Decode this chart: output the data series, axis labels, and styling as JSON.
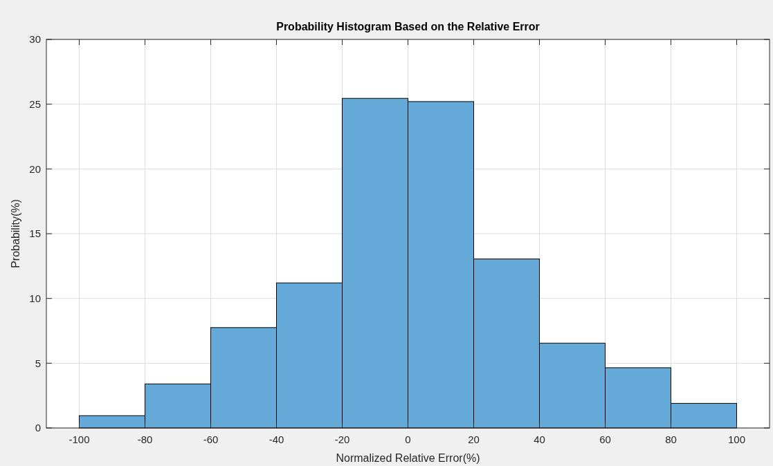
{
  "chart_data": {
    "type": "histogram",
    "title": "Probability Histogram Based on the Relative Error",
    "xlabel": "Normalized Relative Error(%)",
    "ylabel": "Probability(%)",
    "bins": [
      -100,
      -80,
      -60,
      -40,
      -20,
      0,
      20,
      40,
      60,
      80,
      100
    ],
    "values": [
      0.95,
      3.4,
      7.75,
      11.2,
      25.45,
      25.2,
      13.05,
      6.55,
      4.65,
      1.9
    ],
    "color": "#64a9d8",
    "xlim": [
      -110,
      110
    ],
    "xticks": [
      -100,
      -80,
      -60,
      -40,
      -20,
      0,
      20,
      40,
      60,
      80,
      100
    ],
    "ylim": [
      0,
      30
    ],
    "yticks": [
      0,
      5,
      10,
      15,
      20,
      25,
      30
    ],
    "grid": true
  }
}
